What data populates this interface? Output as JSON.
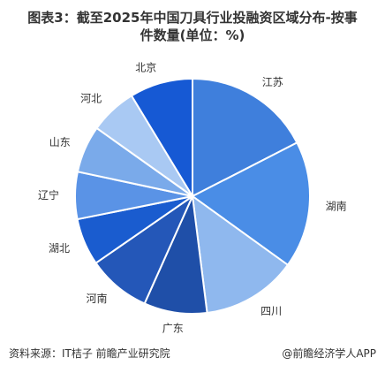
{
  "header": {
    "title_line1": "图表3：截至2025年中国刀具行业投融资区域分布-按事",
    "title_line2": "件数量(单位：%)"
  },
  "footer": {
    "source": "资料来源：IT桔子 前瞻产业研究院",
    "brand": "@前瞻经济学人APP"
  },
  "colors": {
    "title": "#333333",
    "text": "#333333"
  },
  "chart_data": {
    "type": "pie",
    "title": "图表3：截至2025年中国刀具行业投融资区域分布-按事件数量(单位：%)",
    "categories": [
      "江苏",
      "湖南",
      "四川",
      "广东",
      "河南",
      "湖北",
      "辽宁",
      "山东",
      "河北",
      "北京"
    ],
    "values": [
      16.7,
      16.7,
      12.5,
      8.3,
      8.3,
      6.2,
      6.2,
      6.2,
      6.2,
      8.3
    ],
    "unit": "%",
    "colors": [
      "#3f7fdc",
      "#4a8de6",
      "#8fb8ee",
      "#1f4fa8",
      "#2457b8",
      "#1a5ccf",
      "#5a93e6",
      "#7aaaea",
      "#a9c9f3",
      "#1659d4"
    ],
    "legend": "none",
    "data_labels": "category"
  }
}
